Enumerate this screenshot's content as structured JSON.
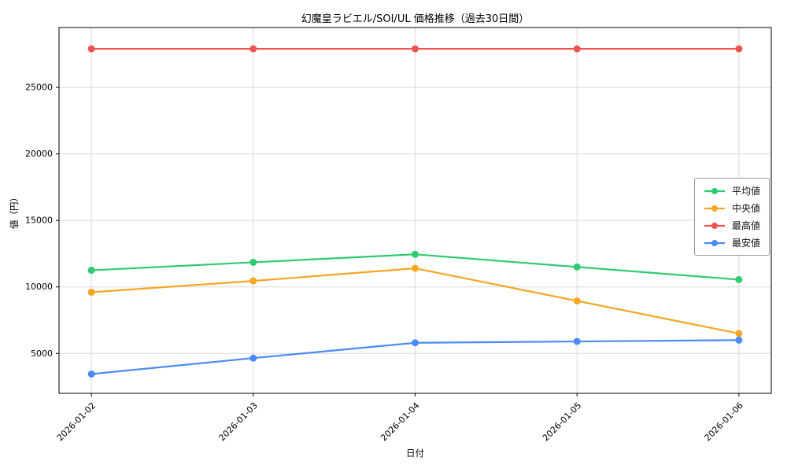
{
  "chart_data": {
    "type": "line",
    "title": "幻魔皇ラビエル/SOI/UL 価格推移（過去30日間）",
    "xlabel": "日付",
    "ylabel": "値（円）",
    "categories": [
      "2026-01-02",
      "2026-01-03",
      "2026-01-04",
      "2026-01-05",
      "2026-01-06"
    ],
    "series": [
      {
        "name": "平均値",
        "color": "#2ecc71",
        "values": [
          11250,
          11850,
          12450,
          11500,
          10550
        ]
      },
      {
        "name": "中央値",
        "color": "#f5a623",
        "values": [
          9600,
          10450,
          11400,
          8950,
          6500
        ]
      },
      {
        "name": "最高値",
        "color": "#ef5350",
        "values": [
          27900,
          27900,
          27900,
          27900,
          27900
        ]
      },
      {
        "name": "最安値",
        "color": "#4c8bf5",
        "values": [
          3450,
          4650,
          5800,
          5900,
          6000
        ]
      }
    ],
    "ylim": [
      2000,
      29500
    ],
    "yticks": [
      5000,
      10000,
      15000,
      20000,
      25000
    ],
    "grid": true,
    "legend_position": "right-middle",
    "grid_color": "#d9d9d9",
    "axis_color": "#000000"
  }
}
